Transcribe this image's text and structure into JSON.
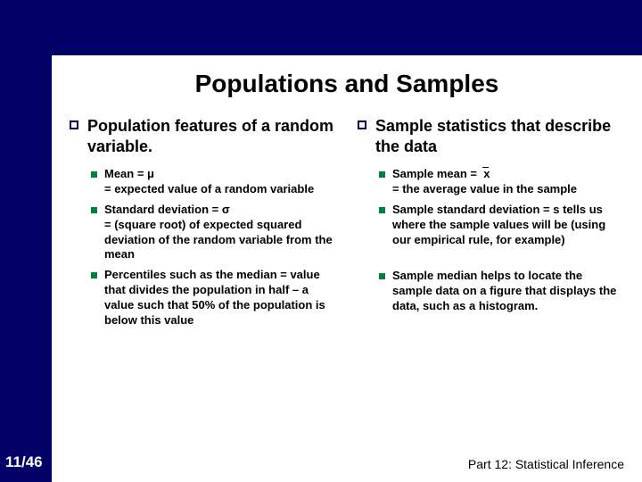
{
  "colors": {
    "navy": "#000066",
    "green": "#008040",
    "black": "#000000",
    "white": "#ffffff"
  },
  "title": "Populations and Samples",
  "left": {
    "header": "Population features of a random variable.",
    "items": [
      "Mean = μ\n= expected value of a random variable",
      "Standard deviation = σ\n= (square root) of expected squared deviation of the random variable from the mean",
      "Percentiles such as the median = value that divides the population in half – a value such that 50% of the population is below this value"
    ]
  },
  "right": {
    "header": "Sample statistics that describe the data",
    "items_group1": [
      "Sample mean =  x\n= the average value in the sample",
      "Sample standard deviation = s tells us where the sample values will be (using our empirical rule, for example)"
    ],
    "items_group2": [
      "Sample median helps to locate the sample data on a figure that displays the data, such as a histogram."
    ]
  },
  "page": "11/46",
  "part": "Part 12: Statistical Inference"
}
